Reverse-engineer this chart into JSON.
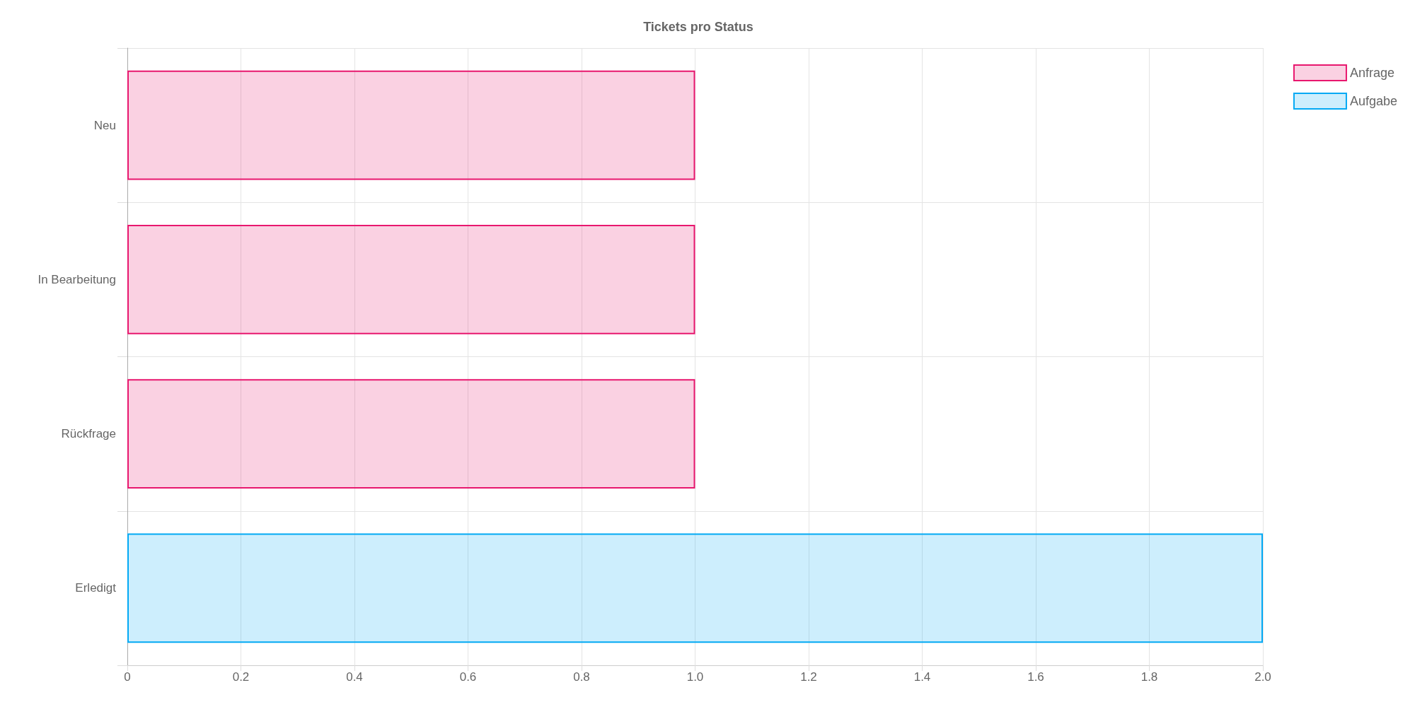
{
  "chart_data": {
    "type": "bar",
    "title": "Tickets pro Status",
    "orientation": "horizontal",
    "stacked": true,
    "categories": [
      "Neu",
      "In Bearbeitung",
      "Rückfrage",
      "Erledigt"
    ],
    "series": [
      {
        "name": "Anfrage",
        "color": "#e8176e",
        "values": [
          1,
          1,
          1,
          null
        ]
      },
      {
        "name": "Aufgabe",
        "color": "#03a9f4",
        "values": [
          null,
          null,
          null,
          2
        ]
      }
    ],
    "xlim": [
      0,
      2
    ],
    "xticks": [
      0,
      0.2,
      0.4,
      0.6,
      0.8,
      {
        "value": 1,
        "label": "1.0"
      },
      1.2,
      1.4,
      1.6,
      1.8,
      {
        "value": 2,
        "label": "2.0"
      }
    ],
    "grid": true,
    "legend": "top right"
  }
}
